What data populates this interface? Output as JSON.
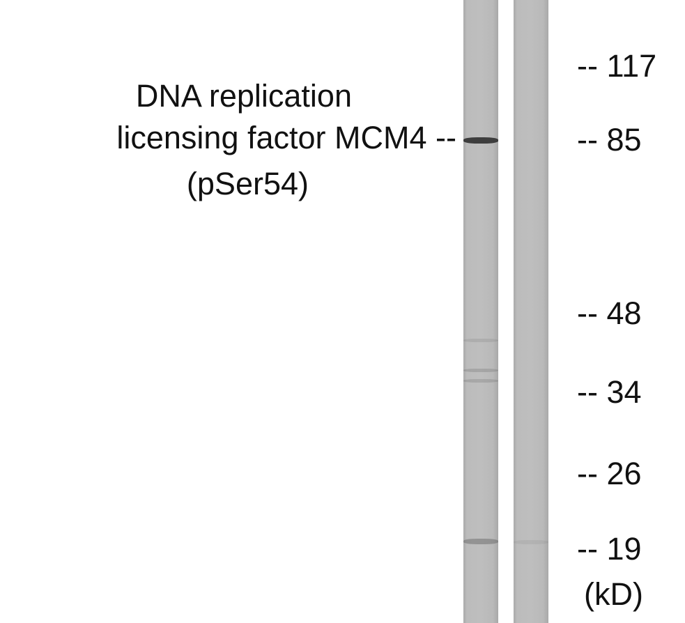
{
  "protein_label": {
    "lines": [
      "DNA replication",
      "licensing factor MCM4 --",
      "(pSer54)"
    ]
  },
  "lanes": [
    {
      "bands": [
        {
          "marker": "85",
          "intensity": 0.9
        },
        {
          "marker": "48-34",
          "intensity": 0.15
        },
        {
          "marker": "34",
          "intensity": 0.2
        },
        {
          "marker": "19",
          "intensity": 0.35
        }
      ]
    },
    {
      "bands": [
        {
          "marker": "19",
          "intensity": 0.08
        }
      ]
    }
  ],
  "markers": [
    {
      "text": "-- 117"
    },
    {
      "text": "-- 85"
    },
    {
      "text": "-- 48"
    },
    {
      "text": "-- 34"
    },
    {
      "text": "-- 26"
    },
    {
      "text": "-- 19"
    }
  ],
  "unit": "(kD)"
}
